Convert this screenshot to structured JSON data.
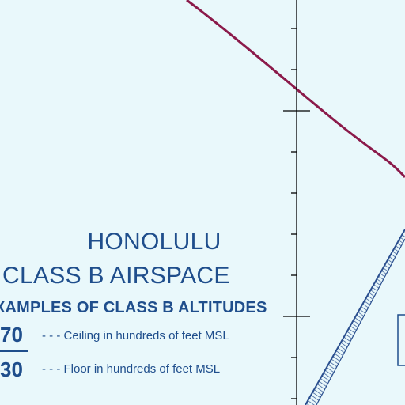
{
  "chart": {
    "title_line1": "HONOLULU",
    "title_line2": "CLASS B AIRSPACE",
    "examples_heading": "XAMPLES OF CLASS B ALTITUDES",
    "ceiling_value": "70",
    "floor_value": "30",
    "ceiling_desc": "- - -  Ceiling in hundreds of feet MSL",
    "floor_desc": "- - -  Floor in hundreds of feet MSL"
  },
  "colors": {
    "background": "#e9f8fb",
    "text": "#1f4e8c",
    "boundary_curve": "#8b1a4a",
    "grid_line": "#000000",
    "restricted_band": "#2a4f8f"
  },
  "features": {
    "boundary_arc": "class-b-boundary-arc",
    "meridian": "longitude-tick-line",
    "hatched_boundary": "special-use-airspace-border",
    "box": "data-box"
  }
}
